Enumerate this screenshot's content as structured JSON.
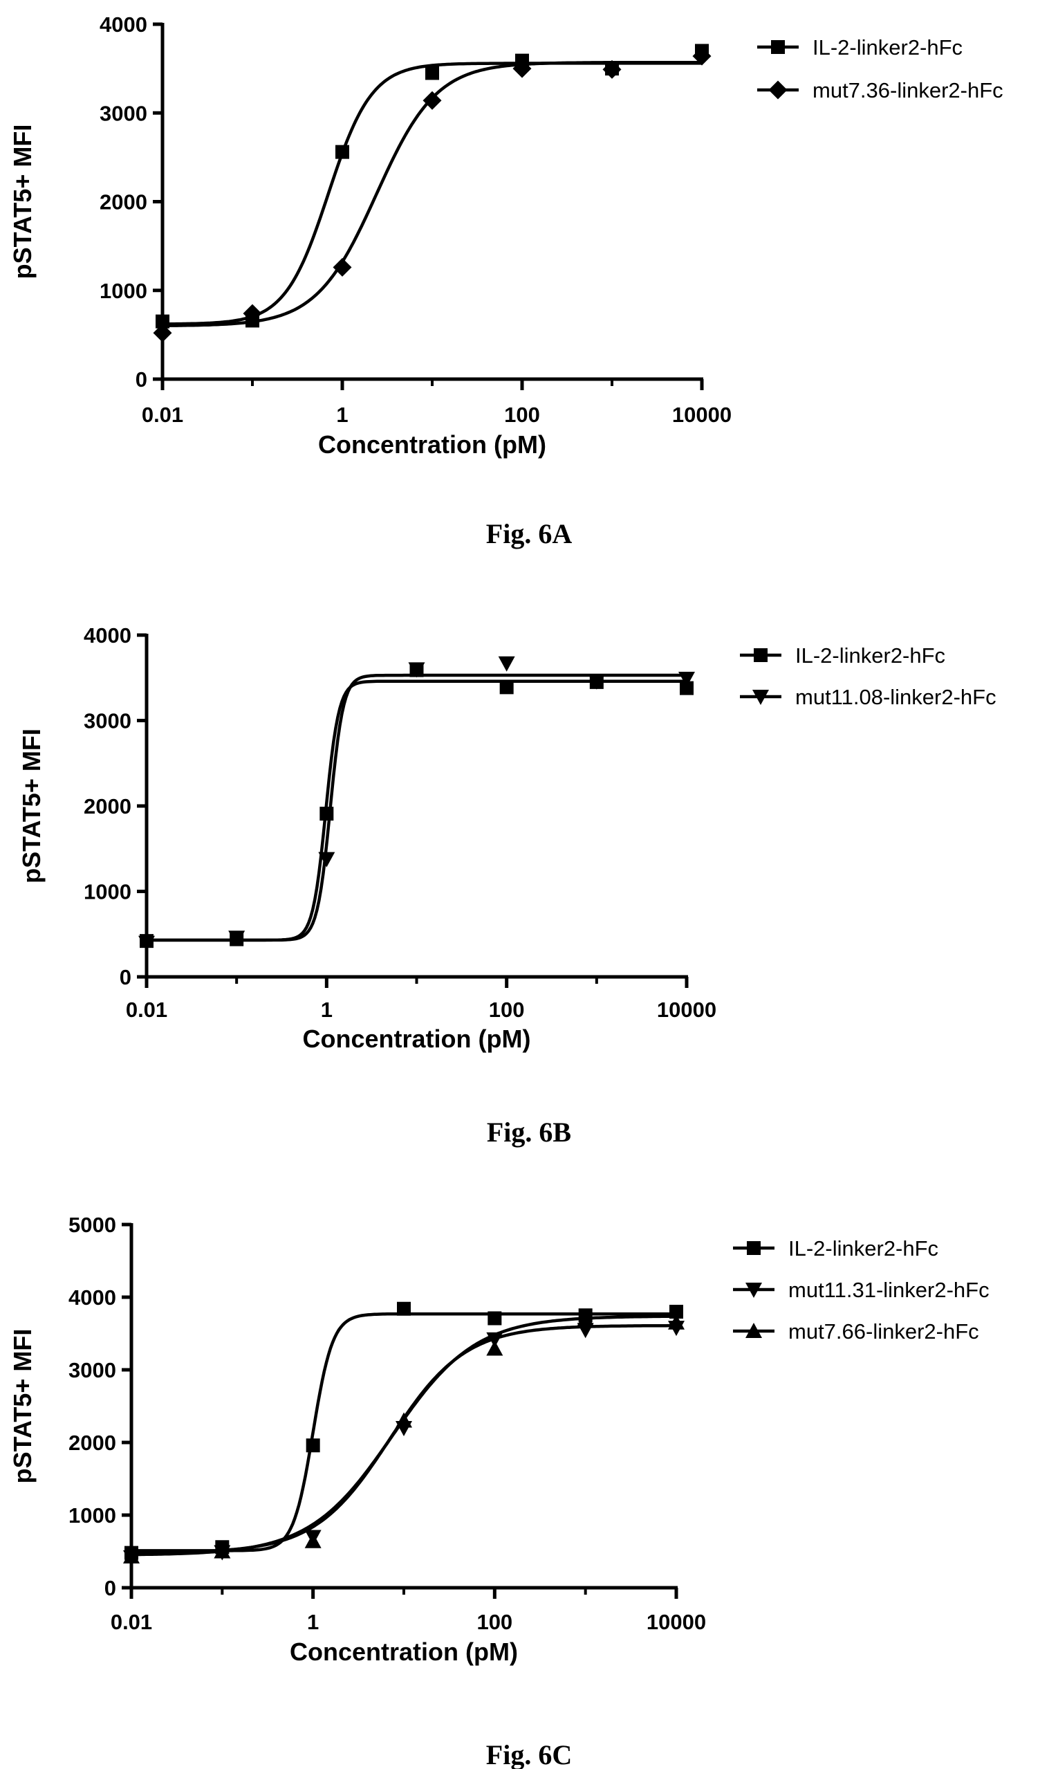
{
  "chart_data": [
    {
      "type": "scatter",
      "caption": "Fig. 6A",
      "xlabel": "Concentration (pM)",
      "ylabel": "pSTAT5+ MFI",
      "x_scale": "log10",
      "xlim": [
        0.01,
        10000
      ],
      "ylim": [
        0,
        4000
      ],
      "x_tick_labels": [
        "0.01",
        "1",
        "100",
        "10000"
      ],
      "y_tick_labels": [
        "0",
        "1000",
        "2000",
        "3000",
        "4000"
      ],
      "grid": false,
      "legend_position": "right",
      "series": [
        {
          "name": "IL-2-linker2-hFc",
          "marker": "square",
          "x": [
            0.01,
            0.1,
            1,
            10,
            100,
            1000,
            10000
          ],
          "y": [
            650,
            660,
            2560,
            3450,
            3590,
            3500,
            3700
          ],
          "fit": {
            "bottom": 620,
            "top": 3560,
            "ec50": 0.7,
            "hill": 1.8
          }
        },
        {
          "name": "mut7.36-linker2-hFc",
          "marker": "diamond",
          "x": [
            0.01,
            0.1,
            1,
            10,
            100,
            1000,
            10000
          ],
          "y": [
            520,
            740,
            1260,
            3140,
            3500,
            3490,
            3640
          ],
          "fit": {
            "bottom": 600,
            "top": 3570,
            "ec50": 2.4,
            "hill": 1.3
          }
        }
      ]
    },
    {
      "type": "scatter",
      "caption": "Fig. 6B",
      "xlabel": "Concentration (pM)",
      "ylabel": "pSTAT5+ MFI",
      "x_scale": "log10",
      "xlim": [
        0.01,
        10000
      ],
      "ylim": [
        0,
        4000
      ],
      "x_tick_labels": [
        "0.01",
        "1",
        "100",
        "10000"
      ],
      "y_tick_labels": [
        "0",
        "1000",
        "2000",
        "3000",
        "4000"
      ],
      "grid": false,
      "legend_position": "right",
      "series": [
        {
          "name": "IL-2-linker2-hFc",
          "marker": "square",
          "x": [
            0.01,
            0.1,
            1,
            10,
            100,
            1000,
            10000
          ],
          "y": [
            420,
            440,
            1910,
            3590,
            3390,
            3450,
            3380
          ],
          "fit": {
            "bottom": 430,
            "top": 3460,
            "ec50": 0.98,
            "hill": 6
          }
        },
        {
          "name": "mut11.08-linker2-hFc",
          "marker": "triangle-down",
          "x": [
            0.01,
            0.1,
            1,
            10,
            100,
            1000,
            10000
          ],
          "y": [
            400,
            460,
            1380,
            3600,
            3670,
            3460,
            3490
          ],
          "fit": {
            "bottom": 430,
            "top": 3530,
            "ec50": 1.1,
            "hill": 6
          }
        }
      ]
    },
    {
      "type": "scatter",
      "caption": "Fig. 6C",
      "xlabel": "Concentration (pM)",
      "ylabel": "pSTAT5+ MFI",
      "x_scale": "log10",
      "xlim": [
        0.01,
        10000
      ],
      "ylim": [
        0,
        5000
      ],
      "x_tick_labels": [
        "0.01",
        "1",
        "100",
        "10000"
      ],
      "y_tick_labels": [
        "0",
        "1000",
        "2000",
        "3000",
        "4000",
        "5000"
      ],
      "grid": false,
      "legend_position": "right",
      "series": [
        {
          "name": "IL-2-linker2-hFc",
          "marker": "square",
          "x": [
            0.01,
            0.1,
            1,
            10,
            100,
            1000,
            10000
          ],
          "y": [
            480,
            560,
            1960,
            3840,
            3710,
            3750,
            3800
          ],
          "fit": {
            "bottom": 510,
            "top": 3770,
            "ec50": 1.0,
            "hill": 4
          }
        },
        {
          "name": "mut11.31-linker2-hFc",
          "marker": "triangle-down",
          "x": [
            0.01,
            0.1,
            1,
            10,
            100,
            1000,
            10000
          ],
          "y": [
            420,
            490,
            700,
            2200,
            3420,
            3550,
            3580
          ],
          "fit": {
            "bottom": 450,
            "top": 3740,
            "ec50": 7.5,
            "hill": 0.95
          }
        },
        {
          "name": "mut7.66-linker2-hFc",
          "marker": "triangle-up",
          "x": [
            0.01,
            0.1,
            1,
            10,
            100,
            1000,
            10000
          ],
          "y": [
            430,
            500,
            640,
            2300,
            3290,
            3700,
            3650
          ],
          "fit": {
            "bottom": 480,
            "top": 3610,
            "ec50": 7.0,
            "hill": 1.05
          }
        }
      ]
    }
  ]
}
